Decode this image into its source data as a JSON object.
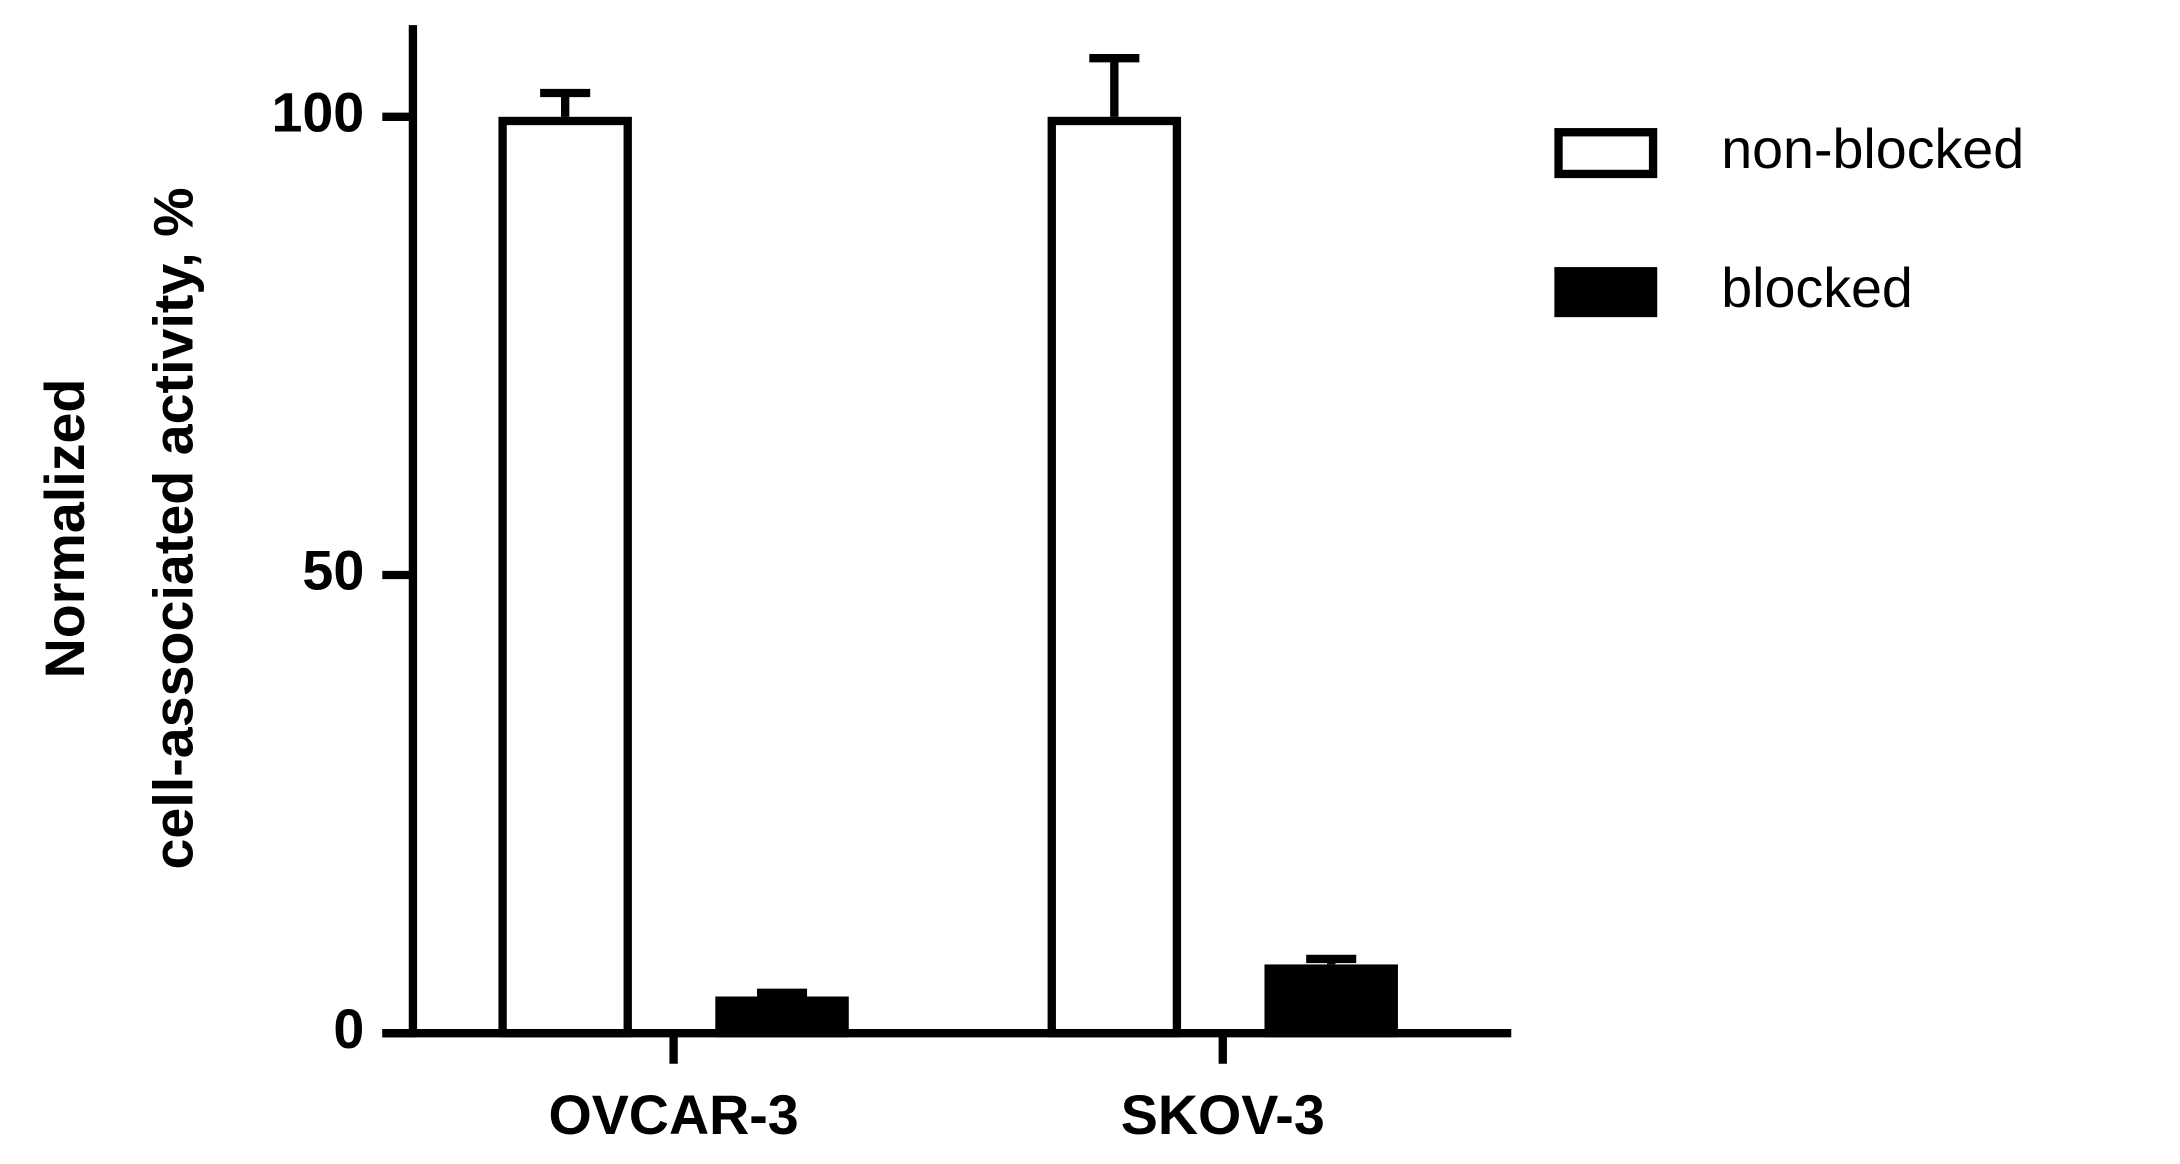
{
  "chart_data": {
    "type": "bar",
    "ylabel": [
      "Normalized",
      "cell-associated activity, %"
    ],
    "categories": [
      "OVCAR-3",
      "SKOV-3"
    ],
    "series": [
      {
        "name": "non-blocked",
        "color": "#ffffff",
        "values": [
          100,
          100
        ],
        "errors": [
          2.6,
          6.4
        ]
      },
      {
        "name": "blocked",
        "color": "#000000",
        "values": [
          4,
          7.5
        ],
        "errors": [
          0.4,
          0.6
        ]
      }
    ],
    "ylim": [
      0,
      110
    ],
    "yticks": [
      0,
      50,
      100
    ],
    "grid": false,
    "legend": "right"
  }
}
